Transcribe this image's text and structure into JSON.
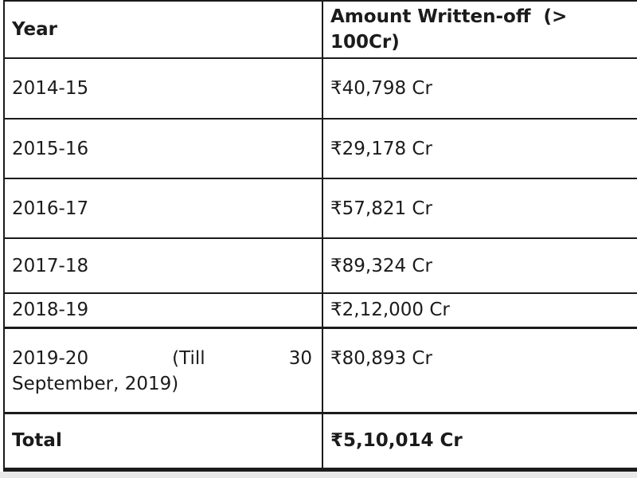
{
  "table": {
    "header": {
      "year": "Year",
      "amount_lines": [
        "Amount Written-off  (>",
        "100Cr)"
      ]
    },
    "rows": [
      {
        "year": "2014-15",
        "amount": "₹40,798 Cr"
      },
      {
        "year": "2015-16",
        "amount": "₹29,178 Cr"
      },
      {
        "year": "2016-17",
        "amount": "₹57,821 Cr"
      },
      {
        "year": "2017-18",
        "amount": "₹89,324 Cr"
      },
      {
        "year": "2018-19",
        "amount": "₹2,12,000 Cr"
      },
      {
        "year_lines": [
          "2019-20 (Till 30",
          "September, 2019)"
        ],
        "amount": "₹80,893 Cr"
      }
    ],
    "total": {
      "label": "Total",
      "amount": "₹5,10,014 Cr"
    }
  },
  "colors": {
    "border": "#1b1b1b",
    "text": "#1b1b1b",
    "background": "#ffffff",
    "page_strip": "#e8e8e8"
  },
  "chart_data": {
    "type": "table",
    "columns": [
      "Year",
      "Amount Written-off (> 100Cr)"
    ],
    "rows": [
      [
        "2014-15",
        "₹40,798 Cr"
      ],
      [
        "2015-16",
        "₹29,178 Cr"
      ],
      [
        "2016-17",
        "₹57,821 Cr"
      ],
      [
        "2017-18",
        "₹89,324 Cr"
      ],
      [
        "2018-19",
        "₹2,12,000 Cr"
      ],
      [
        "2019-20 (Till 30 September, 2019)",
        "₹80,893 Cr"
      ],
      [
        "Total",
        "₹5,10,014 Cr"
      ]
    ],
    "values_in_cr": [
      40798,
      29178,
      57821,
      89324,
      212000,
      80893
    ],
    "total_cr": 510014
  }
}
